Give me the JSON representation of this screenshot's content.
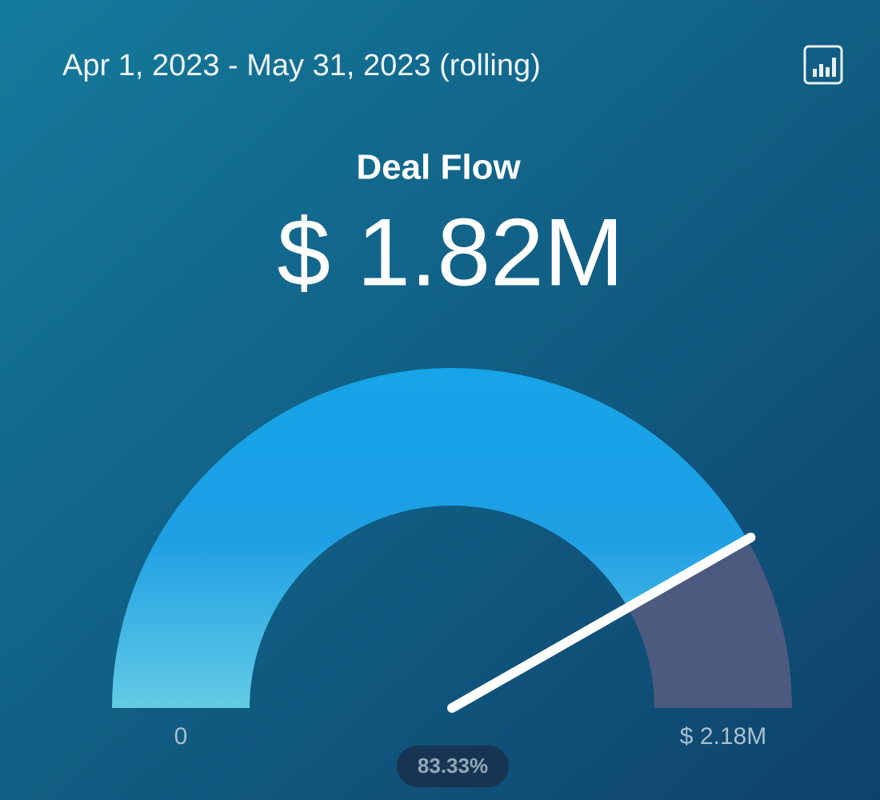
{
  "chart_data": {
    "type": "gauge",
    "date_range": "Apr 1, 2023 - May 31, 2023 (rolling)",
    "title": "Deal Flow",
    "values": [
      1820000
    ],
    "value_labels": [
      "$ 1.82M"
    ],
    "ylim": [
      0,
      2180000
    ],
    "yticks": [
      0,
      {
        "value": 2180000,
        "label": "$ 2.18M"
      }
    ],
    "percent_label": "83.33%",
    "color": "#17a4e8",
    "remainder_color": "#4b5a7e"
  }
}
